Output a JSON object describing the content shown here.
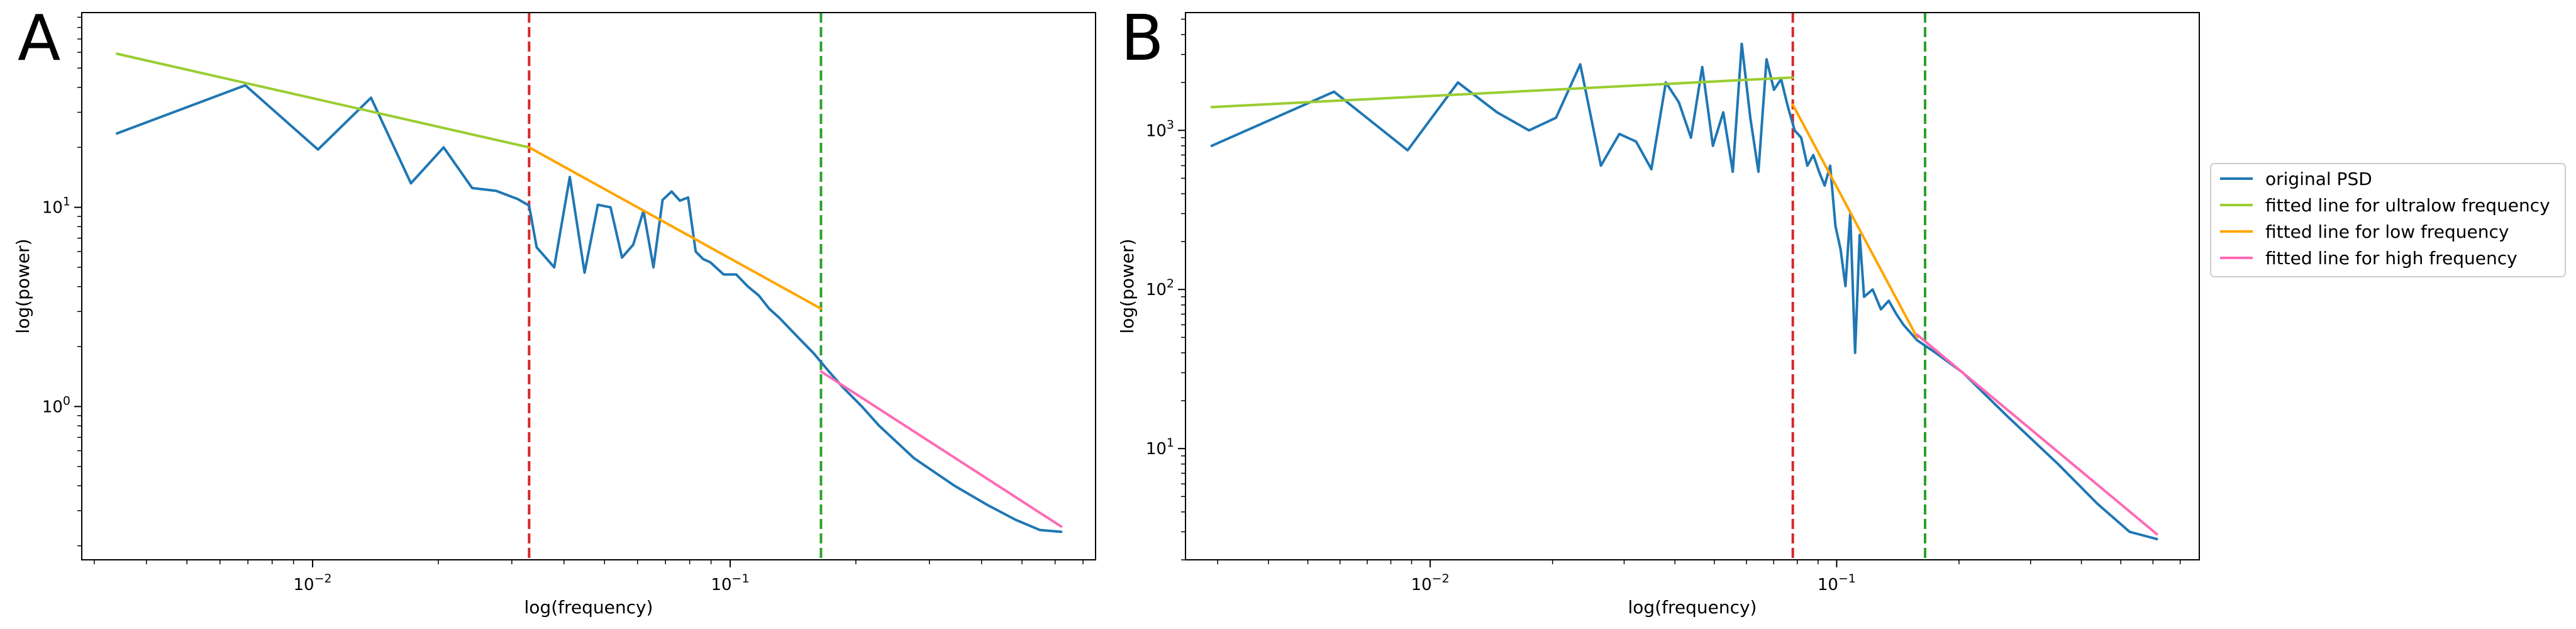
{
  "chart_data": [
    {
      "panel_letter": "A",
      "type": "line",
      "xlabel": "log(frequency)",
      "ylabel": "log(power)",
      "x_scale": "log",
      "y_scale": "log",
      "xlim": [
        0.0028,
        0.75
      ],
      "ylim": [
        0.17,
        95
      ],
      "x_ticks": [
        0.01,
        0.1
      ],
      "y_ticks": [
        1,
        10
      ],
      "vlines": [
        {
          "x": 0.033,
          "color": "#d62728",
          "style": "dashed"
        },
        {
          "x": 0.165,
          "color": "#2ca02c",
          "style": "dashed"
        }
      ],
      "series": [
        {
          "name": "original PSD",
          "color": "#1f77b4",
          "x": [
            0.0034,
            0.0069,
            0.0103,
            0.0138,
            0.0172,
            0.0206,
            0.0241,
            0.0275,
            0.031,
            0.033,
            0.0344,
            0.0379,
            0.0413,
            0.0448,
            0.0482,
            0.0517,
            0.0551,
            0.0586,
            0.062,
            0.0655,
            0.0689,
            0.0724,
            0.0758,
            0.0793,
            0.0827,
            0.0861,
            0.0896,
            0.0965,
            0.1034,
            0.1103,
            0.1172,
            0.124,
            0.1309,
            0.1447,
            0.1585,
            0.1723,
            0.1861,
            0.2068,
            0.2275,
            0.2757,
            0.3447,
            0.4136,
            0.4826,
            0.5515,
            0.6205
          ],
          "y": [
            23.5,
            41,
            19.5,
            35.5,
            13.2,
            20,
            12.5,
            12.1,
            11,
            10.2,
            6.3,
            5.0,
            14.2,
            4.7,
            10.3,
            10.0,
            5.6,
            6.5,
            9.6,
            5.0,
            10.9,
            12.0,
            10.8,
            11.2,
            6.0,
            5.5,
            5.3,
            4.6,
            4.6,
            4.0,
            3.6,
            3.1,
            2.8,
            2.25,
            1.85,
            1.5,
            1.25,
            1.0,
            0.8,
            0.55,
            0.4,
            0.32,
            0.27,
            0.24,
            0.235
          ]
        },
        {
          "name": "fitted line for ultralow frequency",
          "color": "#9acd32",
          "x": [
            0.0034,
            0.033
          ],
          "y": [
            59,
            20
          ]
        },
        {
          "name": "fitted line for low frequency",
          "color": "#ffa500",
          "x": [
            0.033,
            0.165
          ],
          "y": [
            20,
            3.1
          ]
        },
        {
          "name": "fitted line for high frequency",
          "color": "#ff69b4",
          "x": [
            0.165,
            0.6205
          ],
          "y": [
            1.5,
            0.25
          ]
        }
      ]
    },
    {
      "panel_letter": "B",
      "type": "line",
      "xlabel": "log(frequency)",
      "ylabel": "log(power)",
      "x_scale": "log",
      "y_scale": "log",
      "xlim": [
        0.0025,
        0.78
      ],
      "ylim": [
        2,
        5500
      ],
      "x_ticks": [
        0.01,
        0.1
      ],
      "y_ticks": [
        10,
        100,
        1000
      ],
      "vlines": [
        {
          "x": 0.078,
          "color": "#d62728",
          "style": "dashed"
        },
        {
          "x": 0.165,
          "color": "#2ca02c",
          "style": "dashed"
        }
      ],
      "series": [
        {
          "name": "original PSD",
          "color": "#1f77b4",
          "x": [
            0.0029,
            0.0058,
            0.0088,
            0.0117,
            0.0146,
            0.0175,
            0.0204,
            0.0234,
            0.0263,
            0.0292,
            0.0321,
            0.035,
            0.038,
            0.0409,
            0.0438,
            0.0467,
            0.0496,
            0.0526,
            0.0555,
            0.0584,
            0.0613,
            0.0642,
            0.0672,
            0.0701,
            0.073,
            0.0759,
            0.0788,
            0.0818,
            0.0847,
            0.0876,
            0.0905,
            0.0934,
            0.0964,
            0.0993,
            0.1022,
            0.1051,
            0.108,
            0.111,
            0.1139,
            0.1168,
            0.1226,
            0.1285,
            0.1343,
            0.1402,
            0.146,
            0.1577,
            0.1752,
            0.2044,
            0.2628,
            0.3504,
            0.438,
            0.5256,
            0.6132
          ],
          "y": [
            800,
            1750,
            750,
            2000,
            1300,
            1000,
            1200,
            2600,
            600,
            950,
            850,
            570,
            2000,
            1500,
            900,
            2500,
            800,
            1300,
            550,
            3500,
            1200,
            550,
            2800,
            1800,
            2100,
            1400,
            1000,
            900,
            600,
            700,
            550,
            450,
            600,
            250,
            180,
            105,
            300,
            40,
            220,
            90,
            100,
            75,
            85,
            70,
            60,
            48,
            40,
            30,
            16,
            8,
            4.5,
            3,
            2.7
          ]
        },
        {
          "name": "fitted line for ultralow frequency",
          "color": "#9acd32",
          "x": [
            0.0029,
            0.078
          ],
          "y": [
            1400,
            2150
          ]
        },
        {
          "name": "fitted line for low frequency",
          "color": "#ffa500",
          "x": [
            0.078,
            0.1577
          ],
          "y": [
            1450,
            50
          ]
        },
        {
          "name": "fitted line for high frequency",
          "color": "#ff69b4",
          "x": [
            0.1577,
            0.6132
          ],
          "y": [
            52,
            2.9
          ]
        }
      ]
    }
  ],
  "legend": {
    "placement": "right",
    "entries": [
      {
        "label": "original PSD",
        "color": "#1f77b4"
      },
      {
        "label": "fitted line for ultralow frequency",
        "color": "#9acd32"
      },
      {
        "label": "fitted line for low frequency",
        "color": "#ffa500"
      },
      {
        "label": "fitted line for high frequency",
        "color": "#ff69b4"
      }
    ]
  }
}
